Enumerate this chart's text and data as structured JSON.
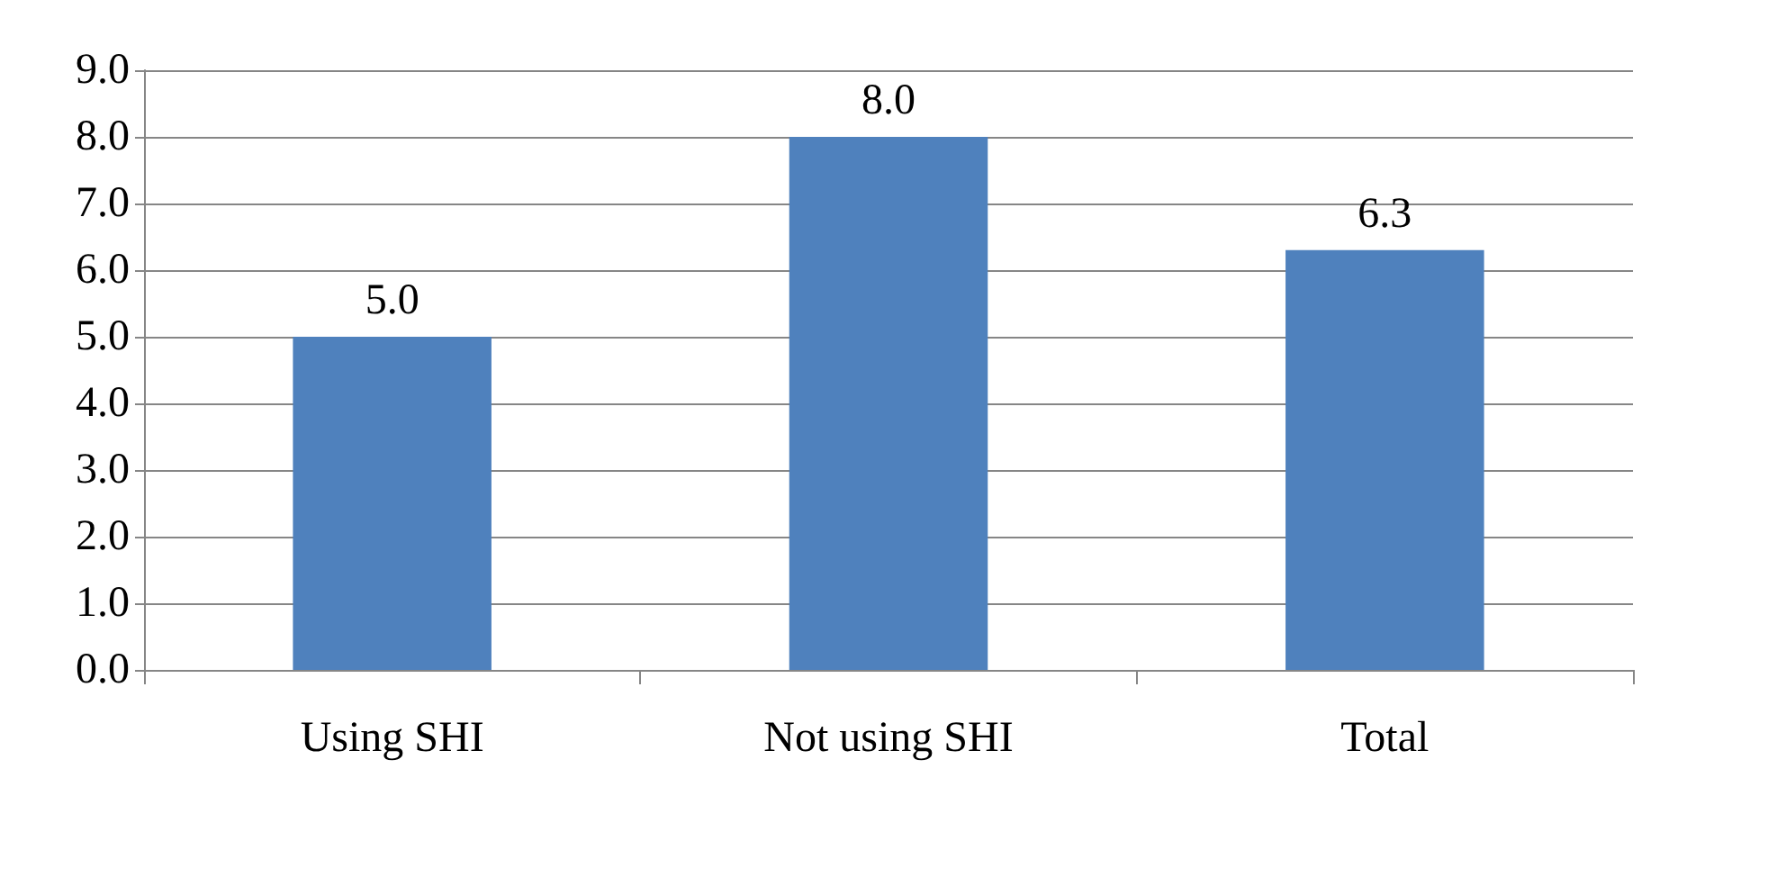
{
  "chart_data": {
    "type": "bar",
    "categories": [
      "Using SHI",
      "Not using SHI",
      "Total"
    ],
    "values": [
      5.0,
      8.0,
      6.3
    ],
    "color": "#4f81bd",
    "value_labels": [
      "5.0",
      "8.0",
      "6.3"
    ],
    "ylim": [
      0,
      9
    ],
    "yticks": [
      {
        "value": 0,
        "label": "0.0"
      },
      {
        "value": 1,
        "label": "1.0"
      },
      {
        "value": 2,
        "label": "2.0"
      },
      {
        "value": 3,
        "label": "3.0"
      },
      {
        "value": 4,
        "label": "4.0"
      },
      {
        "value": 5,
        "label": "5.0"
      },
      {
        "value": 6,
        "label": "6.0"
      },
      {
        "value": 7,
        "label": "7.0"
      },
      {
        "value": 8,
        "label": "8.0"
      },
      {
        "value": 9,
        "label": "9.0"
      }
    ],
    "grid": "y"
  }
}
